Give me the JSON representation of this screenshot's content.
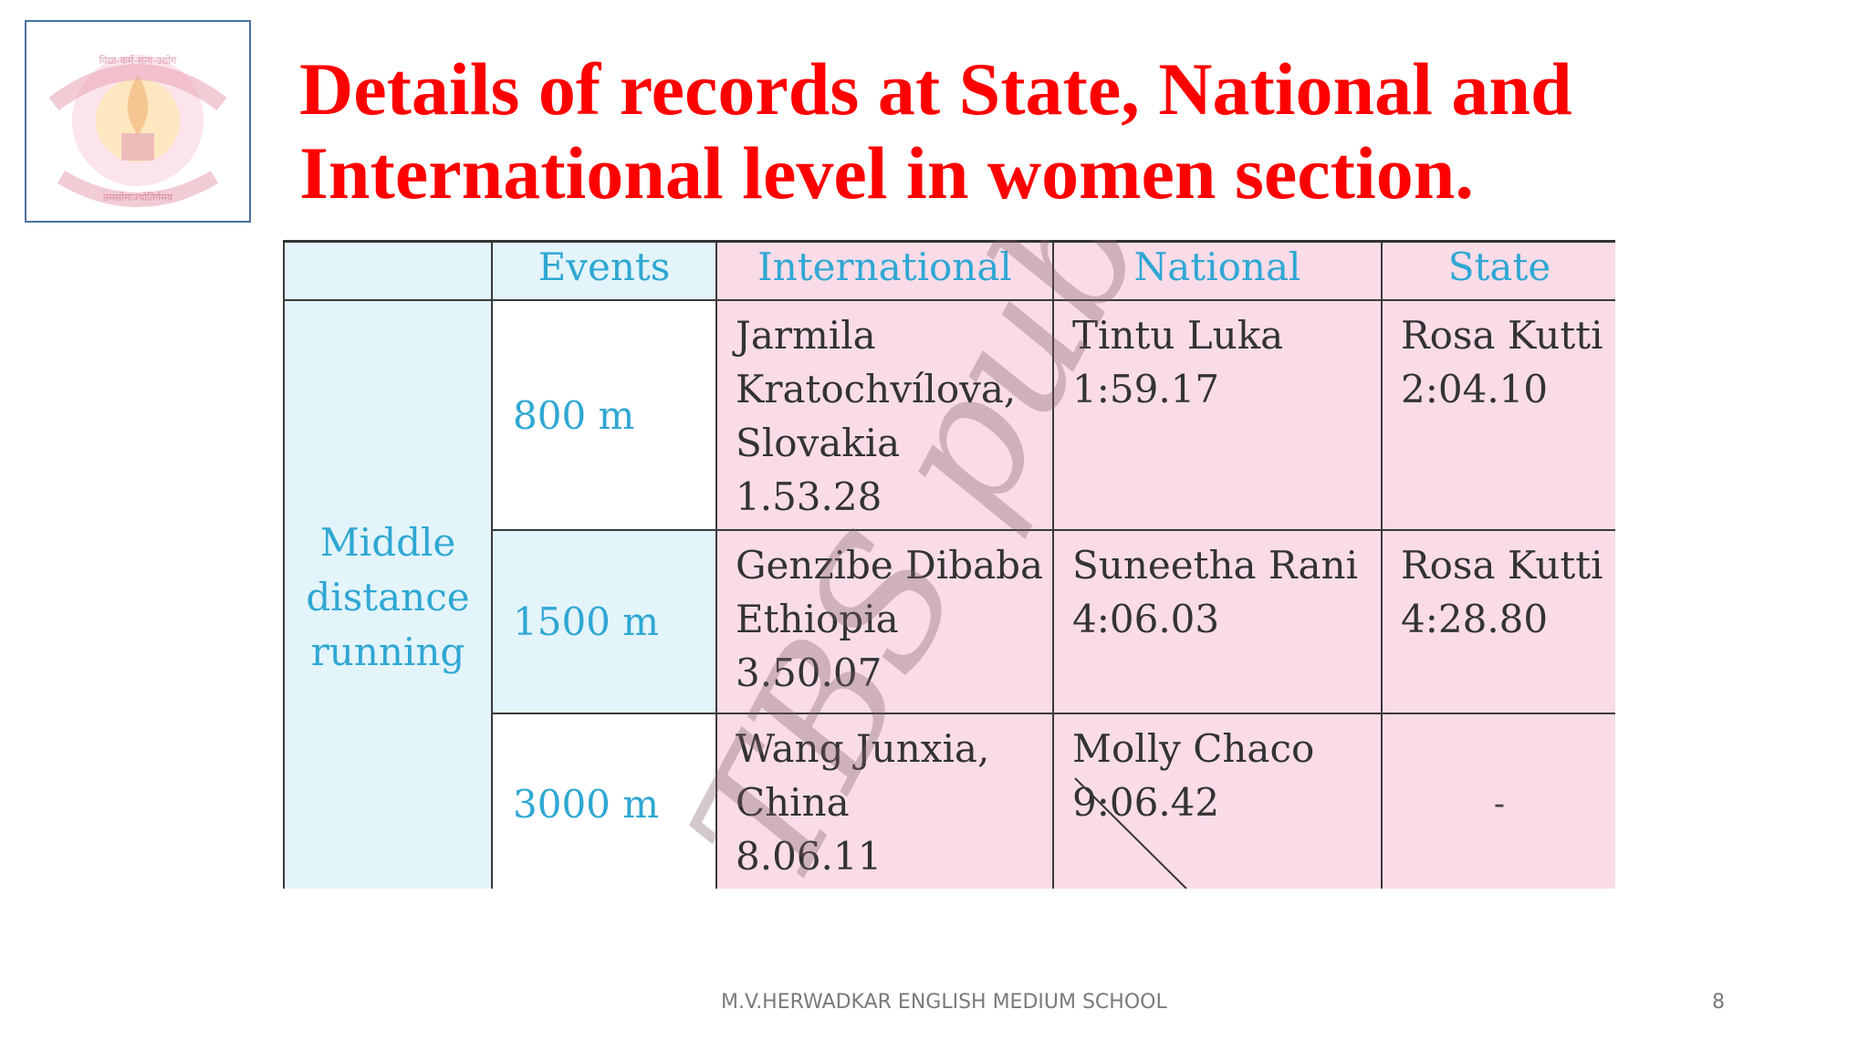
{
  "slide": {
    "title_line1": "Details of records at State, National and",
    "title_line2": "International level in women section.",
    "title_color": "#ff0000",
    "logo": {
      "icon": "school-emblem-icon",
      "top_text": "विद्या-कर्म-सत्य-उद्योग",
      "bottom_text": "तमसोमाज्योतिर्गमय"
    }
  },
  "table": {
    "headers": {
      "group": "",
      "events": "Events",
      "international": "International",
      "national": "National",
      "state": "State"
    },
    "group_label": [
      "Middle",
      "distance",
      "running"
    ],
    "rows": [
      {
        "event": "800 m",
        "international": [
          "Jarmila",
          "Kratochvílova,",
          "Slovakia",
          "1.53.28"
        ],
        "national": [
          "Tintu Luka",
          "1:59.17"
        ],
        "state": [
          "Rosa Kutti",
          "2:04.10"
        ]
      },
      {
        "event": "1500 m",
        "international": [
          "Genzibe Dibaba",
          "Ethiopia",
          "3.50.07"
        ],
        "national": [
          "Suneetha Rani",
          "4:06.03"
        ],
        "state": [
          "Rosa Kutti",
          "4:28.80"
        ]
      },
      {
        "event": "3000 m",
        "international": [
          "Wang Junxia,",
          "China",
          "8.06.11"
        ],
        "national": [
          "Molly Chaco",
          "9:06.42"
        ],
        "state": "-"
      }
    ],
    "colors": {
      "header_text": "#2fa7d3",
      "group_bg": "#e3f4fb",
      "record_bg": "#fadce9"
    }
  },
  "watermark": {
    "text": "TBS published"
  },
  "footer": {
    "text": "M.V.HERWADKAR ENGLISH MEDIUM SCHOOL",
    "page_number": "8"
  }
}
